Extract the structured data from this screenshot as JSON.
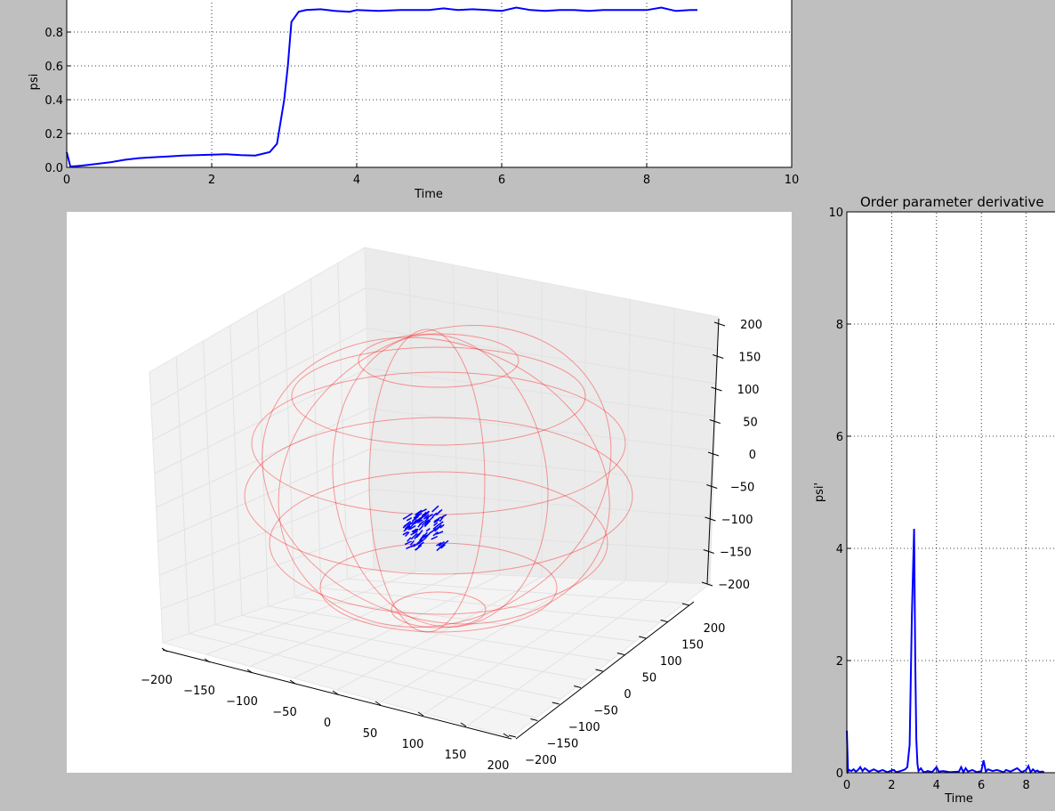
{
  "chart_data": [
    {
      "type": "line",
      "title": "",
      "xlabel": "Time",
      "ylabel": "psi",
      "xlim": [
        0,
        10
      ],
      "ylim": [
        0,
        1
      ],
      "x_ticks": [
        "0",
        "2",
        "4",
        "6",
        "8",
        "10"
      ],
      "y_ticks": [
        "0.0",
        "0.2",
        "0.4",
        "0.6",
        "0.8"
      ],
      "grid": true,
      "series": [
        {
          "color": "#0000ff",
          "x": [
            0,
            0.05,
            0.2,
            0.4,
            0.6,
            0.8,
            1.0,
            1.2,
            1.4,
            1.6,
            1.8,
            2.0,
            2.2,
            2.4,
            2.6,
            2.8,
            2.9,
            3.0,
            3.05,
            3.1,
            3.2,
            3.3,
            3.5,
            3.7,
            3.9,
            4.0,
            4.3,
            4.6,
            5.0,
            5.2,
            5.4,
            5.6,
            5.8,
            6.0,
            6.2,
            6.4,
            6.6,
            6.8,
            7.0,
            7.2,
            7.4,
            7.6,
            7.8,
            8.0,
            8.2,
            8.4,
            8.6,
            8.7
          ],
          "y": [
            0.09,
            0.005,
            0.01,
            0.02,
            0.03,
            0.045,
            0.055,
            0.06,
            0.065,
            0.07,
            0.072,
            0.075,
            0.078,
            0.072,
            0.07,
            0.09,
            0.14,
            0.4,
            0.6,
            0.86,
            0.92,
            0.93,
            0.935,
            0.925,
            0.92,
            0.93,
            0.925,
            0.93,
            0.93,
            0.94,
            0.93,
            0.935,
            0.93,
            0.925,
            0.945,
            0.93,
            0.925,
            0.93,
            0.93,
            0.925,
            0.93,
            0.93,
            0.93,
            0.93,
            0.945,
            0.925,
            0.93,
            0.93
          ]
        }
      ]
    },
    {
      "type": "scatter",
      "title": "",
      "projection": "3d",
      "x_ticks": [
        "−200",
        "−150",
        "−100",
        "−50",
        "0",
        "50",
        "100",
        "150",
        "200"
      ],
      "y_ticks": [
        "−200",
        "−150",
        "−100",
        "−50",
        "0",
        "50",
        "100",
        "150",
        "200"
      ],
      "z_ticks": [
        "−200",
        "−150",
        "−100",
        "−50",
        "0",
        "50",
        "100",
        "150",
        "200"
      ],
      "xlim": [
        -200,
        200
      ],
      "ylim": [
        -200,
        200
      ],
      "zlim": [
        -200,
        200
      ],
      "sphere_wireframe_color": "#ff0000",
      "points_color": "#0000ff"
    },
    {
      "type": "line",
      "title": "Order parameter derivative",
      "xlabel": "Time",
      "ylabel": "psi'",
      "xlim": [
        0,
        10
      ],
      "ylim": [
        0,
        10
      ],
      "x_ticks": [
        "0",
        "2",
        "4",
        "6",
        "8"
      ],
      "y_ticks": [
        "0",
        "2",
        "4",
        "6",
        "8",
        "10"
      ],
      "grid": true,
      "series": [
        {
          "color": "#0000ff",
          "x": [
            0,
            0.05,
            0.1,
            0.2,
            0.3,
            0.4,
            0.5,
            0.6,
            0.7,
            0.8,
            0.9,
            1.0,
            1.2,
            1.4,
            1.6,
            1.8,
            2.0,
            2.1,
            2.2,
            2.4,
            2.6,
            2.7,
            2.8,
            2.9,
            3.0,
            3.05,
            3.1,
            3.15,
            3.2,
            3.3,
            3.4,
            3.5,
            3.6,
            3.8,
            4.0,
            4.1,
            4.3,
            4.6,
            5.0,
            5.1,
            5.2,
            5.3,
            5.4,
            5.6,
            5.8,
            6.0,
            6.1,
            6.2,
            6.3,
            6.5,
            6.7,
            7.0,
            7.1,
            7.3,
            7.6,
            7.8,
            8.0,
            8.1,
            8.2,
            8.3,
            8.4,
            8.5,
            8.6,
            8.7,
            8.8
          ],
          "y": [
            0.75,
            0.02,
            0.05,
            0.03,
            0.06,
            0.02,
            0.05,
            0.1,
            0.03,
            0.08,
            0.05,
            0.02,
            0.06,
            0.02,
            0.05,
            0.01,
            0.04,
            0.05,
            0.01,
            0.03,
            0.06,
            0.1,
            0.5,
            2.8,
            4.35,
            2.0,
            0.6,
            0.15,
            0.03,
            0.08,
            0.02,
            0.01,
            0.03,
            0.01,
            0.1,
            0.02,
            0.03,
            0.01,
            0.02,
            0.1,
            0.01,
            0.08,
            0.02,
            0.05,
            0.01,
            0.03,
            0.22,
            0.02,
            0.06,
            0.03,
            0.05,
            0.01,
            0.05,
            0.02,
            0.08,
            0.01,
            0.05,
            0.12,
            0.01,
            0.06,
            0.02,
            0.04,
            0.01,
            0.02,
            0.01
          ]
        }
      ]
    }
  ]
}
